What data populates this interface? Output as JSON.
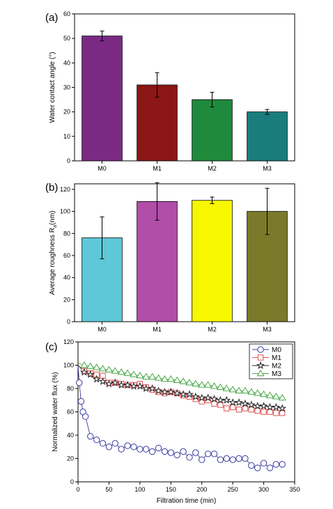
{
  "chart_data": [
    {
      "panel": "(a)",
      "type": "bar",
      "categories": [
        "M0",
        "M1",
        "M2",
        "M3"
      ],
      "values": [
        51,
        31,
        25,
        20
      ],
      "errors": [
        2,
        5,
        3,
        1
      ],
      "colors": [
        "#7b2a84",
        "#8b1616",
        "#1f8a3c",
        "#1a7d7d"
      ],
      "xlabel": "",
      "ylabel": "Water contact angle (°)",
      "ylim": [
        0,
        60
      ],
      "yticks": [
        0,
        10,
        20,
        30,
        40,
        50,
        60
      ]
    },
    {
      "panel": "(b)",
      "type": "bar",
      "categories": [
        "M0",
        "M1",
        "M2",
        "M3"
      ],
      "values": [
        76,
        109,
        110,
        100
      ],
      "errors": [
        19,
        17,
        3,
        21
      ],
      "colors": [
        "#5ec8d8",
        "#b04ea8",
        "#f7f700",
        "#7a7a2a"
      ],
      "xlabel": "",
      "ylabel": "Average roughness R",
      "ylabel_sub": "a",
      "ylabel_unit": "(nm)",
      "ylim": [
        0,
        125
      ],
      "yticks": [
        0,
        20,
        40,
        60,
        80,
        100,
        120
      ]
    },
    {
      "panel": "(c)",
      "type": "line",
      "xlabel": "Filtration time (min)",
      "ylabel": "Normalized water flux (%)",
      "xlim": [
        0,
        350
      ],
      "ylim": [
        0,
        120
      ],
      "xticks": [
        0,
        50,
        100,
        150,
        200,
        250,
        300,
        350
      ],
      "yticks": [
        0,
        20,
        40,
        60,
        80,
        100,
        120
      ],
      "legend_position": "top-right",
      "series": [
        {
          "name": "M0",
          "marker": "circle",
          "color": "#3a3aa0",
          "x": [
            0,
            2,
            5,
            8,
            12,
            20,
            30,
            40,
            50,
            60,
            70,
            80,
            90,
            100,
            110,
            120,
            130,
            140,
            150,
            160,
            170,
            180,
            190,
            200,
            210,
            220,
            230,
            240,
            250,
            260,
            270,
            280,
            290,
            300,
            310,
            320,
            330
          ],
          "y": [
            100,
            85,
            69,
            60,
            56,
            39,
            36,
            33,
            30,
            33,
            28,
            31,
            30,
            28,
            28,
            26,
            29,
            26,
            25,
            23,
            26,
            21,
            25,
            19,
            24,
            24,
            19,
            20,
            19,
            20,
            20,
            14,
            12,
            16,
            12,
            15,
            15
          ]
        },
        {
          "name": "M1",
          "marker": "square",
          "color": "#e05050",
          "x": [
            0,
            10,
            20,
            30,
            40,
            50,
            60,
            70,
            80,
            90,
            100,
            110,
            120,
            130,
            140,
            150,
            160,
            170,
            180,
            190,
            200,
            210,
            220,
            230,
            240,
            250,
            260,
            270,
            280,
            290,
            300,
            310,
            320,
            330
          ],
          "y": [
            100,
            95,
            93,
            92,
            91,
            85,
            85,
            84,
            83,
            83,
            84,
            81,
            79,
            77,
            76,
            77,
            76,
            74,
            73,
            71,
            69,
            70,
            67,
            66,
            63,
            64,
            62,
            63,
            62,
            61,
            60,
            60,
            59,
            59
          ]
        },
        {
          "name": "M2",
          "marker": "star",
          "color": "#222222",
          "x": [
            0,
            10,
            20,
            30,
            40,
            50,
            60,
            70,
            80,
            90,
            100,
            110,
            120,
            130,
            140,
            150,
            160,
            170,
            180,
            190,
            200,
            210,
            220,
            230,
            240,
            250,
            260,
            270,
            280,
            290,
            300,
            310,
            320,
            330
          ],
          "y": [
            100,
            94,
            92,
            88,
            86,
            84,
            85,
            83,
            83,
            82,
            82,
            80,
            80,
            78,
            77,
            77,
            76,
            75,
            75,
            73,
            72,
            72,
            71,
            70,
            70,
            68,
            68,
            67,
            66,
            65,
            65,
            64,
            64,
            63
          ]
        },
        {
          "name": "M3",
          "marker": "triangle",
          "color": "#4aa84a",
          "x": [
            0,
            10,
            20,
            30,
            40,
            50,
            60,
            70,
            80,
            90,
            100,
            110,
            120,
            130,
            140,
            150,
            160,
            170,
            180,
            190,
            200,
            210,
            220,
            230,
            240,
            250,
            260,
            270,
            280,
            290,
            300,
            310,
            320,
            330
          ],
          "y": [
            102,
            100,
            99,
            98,
            97,
            96,
            95,
            94,
            93,
            92,
            91,
            90,
            90,
            89,
            88,
            88,
            87,
            86,
            85,
            84,
            83,
            83,
            82,
            81,
            80,
            79,
            78,
            78,
            77,
            76,
            75,
            74,
            73,
            72
          ]
        }
      ]
    }
  ]
}
